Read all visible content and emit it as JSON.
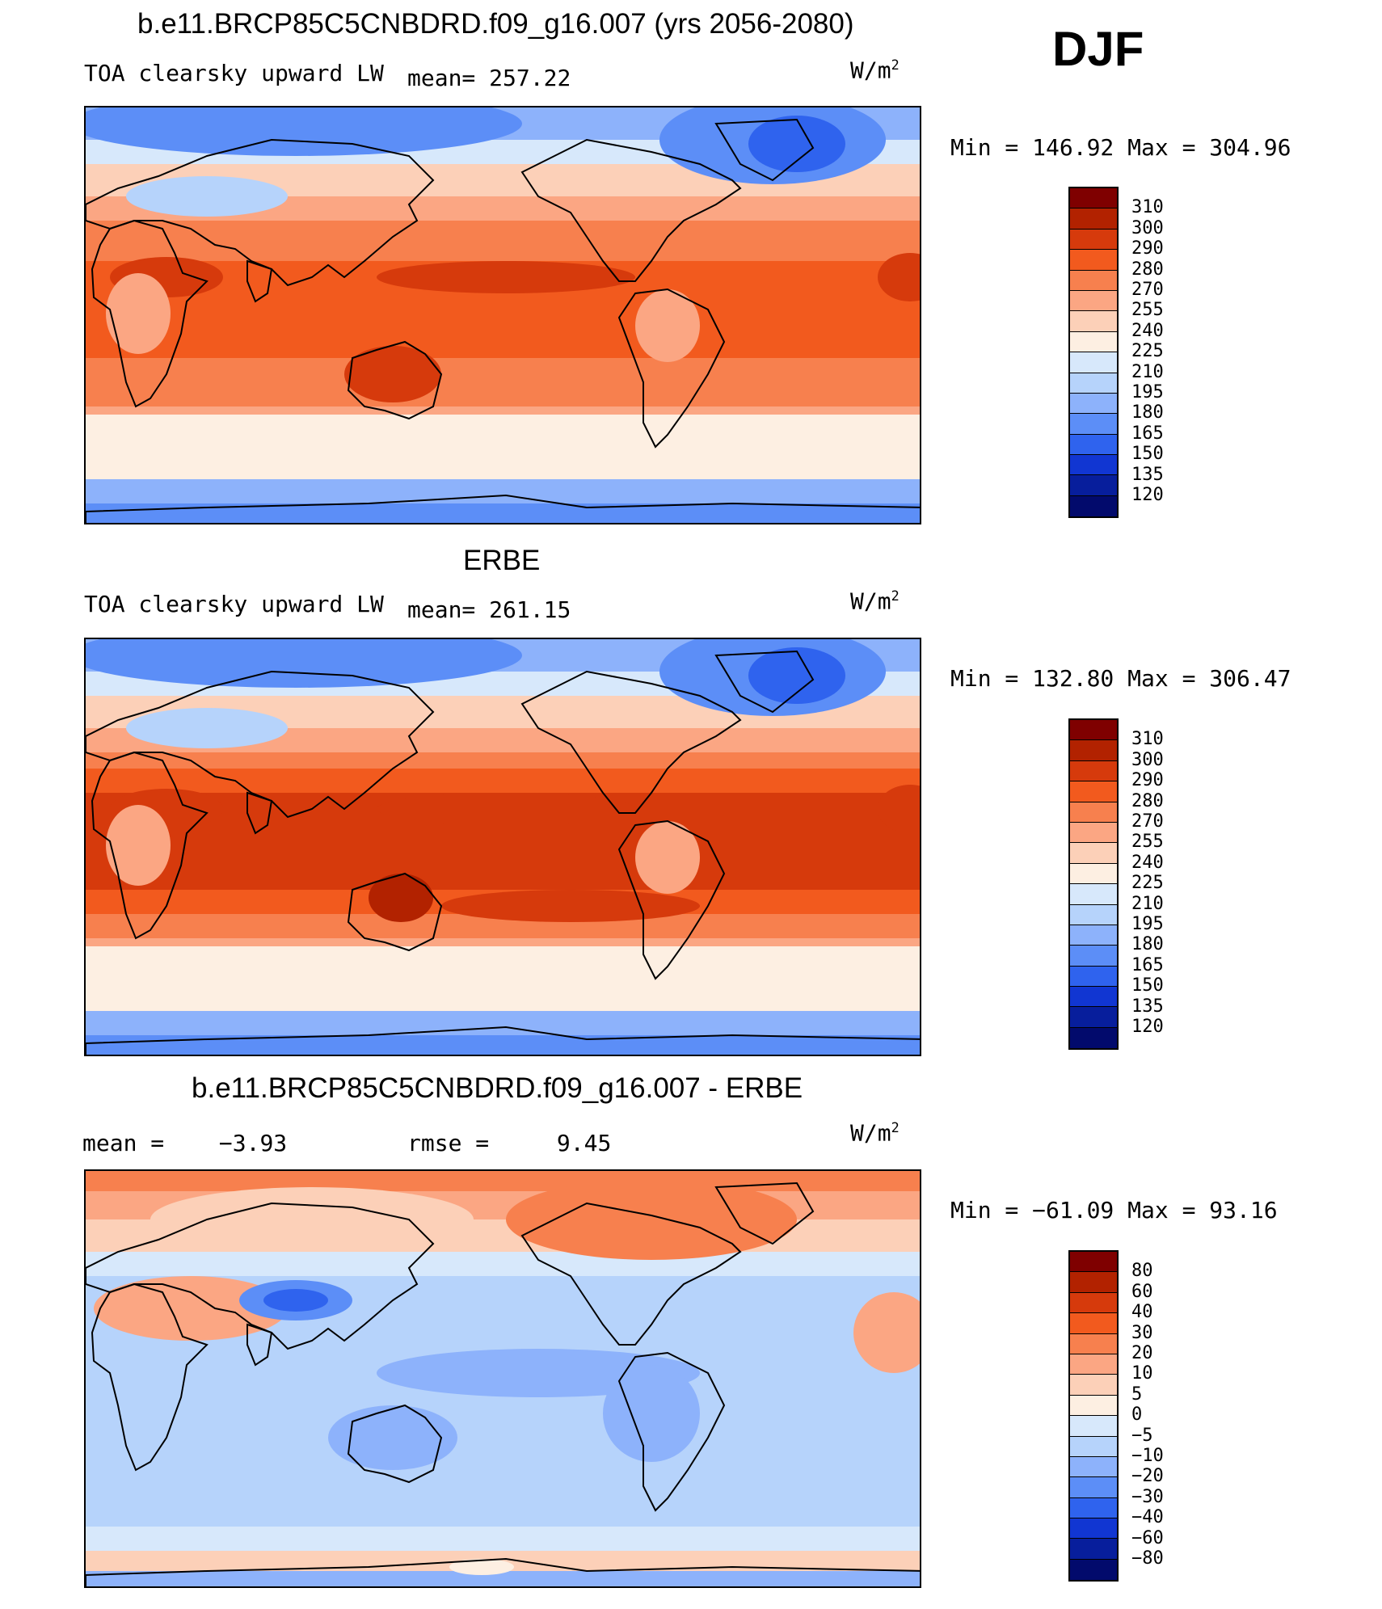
{
  "season": "DJF",
  "panels": [
    {
      "title": "b.e11.BRCP85C5CNBDRD.f09_g16.007 (yrs 2056-2080)",
      "left_label": "TOA clearsky upward LW",
      "stat_label": "mean=",
      "stat_value": "257.22",
      "units_main": "W/m",
      "units_exp": "2",
      "minmax": "Min = 146.92 Max = 304.96",
      "kind": "abs",
      "colorbar": [
        "310",
        "300",
        "290",
        "280",
        "270",
        "255",
        "240",
        "225",
        "210",
        "195",
        "180",
        "165",
        "150",
        "135",
        "120"
      ]
    },
    {
      "title": "ERBE",
      "left_label": "TOA clearsky upward LW",
      "stat_label": "mean=",
      "stat_value": "261.15",
      "units_main": "W/m",
      "units_exp": "2",
      "minmax": "Min = 132.80 Max = 306.47",
      "kind": "abs",
      "colorbar": [
        "310",
        "300",
        "290",
        "280",
        "270",
        "255",
        "240",
        "225",
        "210",
        "195",
        "180",
        "165",
        "150",
        "135",
        "120"
      ]
    },
    {
      "title": "b.e11.BRCP85C5CNBDRD.f09_g16.007 - ERBE",
      "left_label": "mean =",
      "left_value": "−3.93",
      "stat_label": "rmse =",
      "stat_value": "9.45",
      "units_main": "W/m",
      "units_exp": "2",
      "minmax": "Min = −61.09 Max =  93.16",
      "kind": "diff",
      "colorbar": [
        "80",
        "60",
        "40",
        "30",
        "20",
        "10",
        "5",
        "0",
        "−5",
        "−10",
        "−20",
        "−30",
        "−40",
        "−60",
        "−80"
      ]
    }
  ],
  "colors": {
    "palette_top_to_bottom": [
      "#7f0000",
      "#b22200",
      "#d63a0c",
      "#f25a1e",
      "#f7804e",
      "#fba683",
      "#fcd0b8",
      "#fdefe2",
      "#d7e8fb",
      "#b6d3fb",
      "#8db2fb",
      "#5c8ef7",
      "#2f63ee",
      "#1136d2",
      "#071e9c",
      "#020a6c"
    ]
  }
}
